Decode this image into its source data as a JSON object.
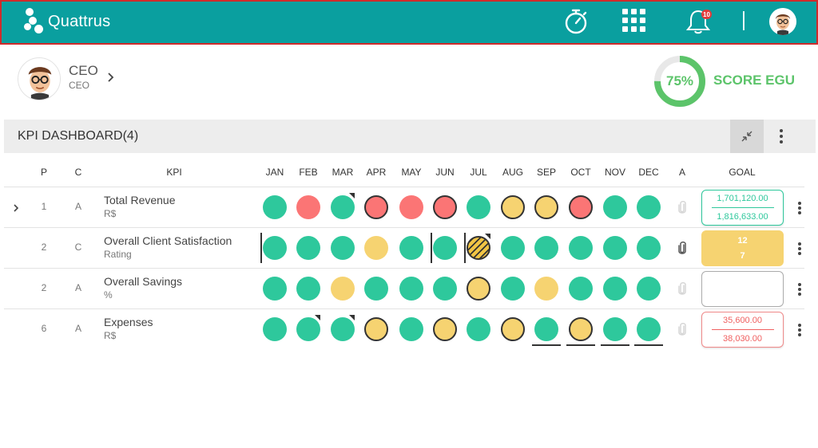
{
  "app": {
    "brand": "Quattrus",
    "notifications_count": "10"
  },
  "profile": {
    "name": "CEO",
    "role": "CEO"
  },
  "score": {
    "percent": "75%",
    "value": 0.75,
    "label": "SCORE EGU",
    "color": "#5cc46a"
  },
  "dashboard": {
    "title": "KPI DASHBOARD(4)"
  },
  "columns": {
    "p": "P",
    "c": "C",
    "kpi": "KPI",
    "months": [
      "JAN",
      "FEB",
      "MAR",
      "APR",
      "MAY",
      "JUN",
      "JUL",
      "AUG",
      "SEP",
      "OCT",
      "NOV",
      "DEC"
    ],
    "a": "A",
    "goal": "GOAL"
  },
  "status_colors": {
    "green": "#2ec89c",
    "red": "#fb7575",
    "yellow": "#f6d371"
  },
  "rows": [
    {
      "p": "1",
      "c": "A",
      "name": "Total Revenue",
      "unit": "R$",
      "months": [
        "green",
        "red",
        "green",
        "red",
        "red",
        "red",
        "green",
        "yellow",
        "yellow",
        "red",
        "green",
        "green"
      ],
      "goal": {
        "style": "green",
        "top": "1,701,120.00",
        "bottom": "1,816,633.00"
      }
    },
    {
      "p": "2",
      "c": "C",
      "name": "Overall Client Satisfaction",
      "unit": "Rating",
      "months": [
        "green",
        "green",
        "green",
        "yellow",
        "green",
        "green",
        "yellow",
        "green",
        "green",
        "green",
        "green",
        "green"
      ],
      "goal": {
        "style": "yellow",
        "top": "12",
        "bottom": "7"
      }
    },
    {
      "p": "2",
      "c": "A",
      "name": "Overall Savings",
      "unit": "%",
      "months": [
        "green",
        "green",
        "yellow",
        "green",
        "green",
        "green",
        "yellow",
        "green",
        "yellow",
        "green",
        "green",
        "green"
      ],
      "goal": {
        "style": "empty",
        "top": "",
        "bottom": ""
      }
    },
    {
      "p": "6",
      "c": "A",
      "name": "Expenses",
      "unit": "R$",
      "months": [
        "green",
        "green",
        "green",
        "yellow",
        "green",
        "yellow",
        "green",
        "yellow",
        "green",
        "yellow",
        "green",
        "green"
      ],
      "goal": {
        "style": "red",
        "top": "35,600.00",
        "bottom": "38,030.00"
      }
    }
  ]
}
